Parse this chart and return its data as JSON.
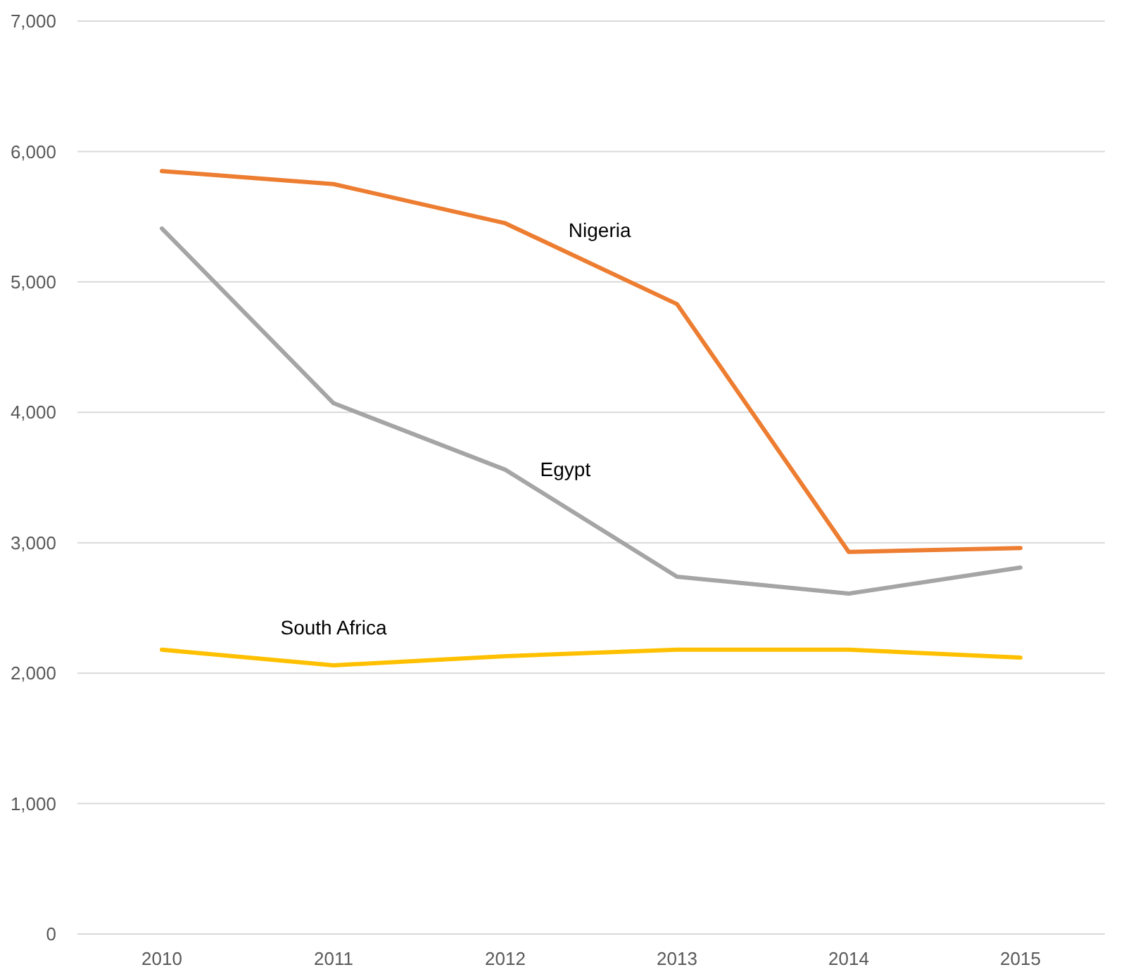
{
  "chart_data": {
    "type": "line",
    "categories": [
      "2010",
      "2011",
      "2012",
      "2013",
      "2014",
      "2015"
    ],
    "series": [
      {
        "name": "Nigeria",
        "color": "#ed7d31",
        "values": [
          5850,
          5750,
          5450,
          4830,
          2930,
          2960
        ]
      },
      {
        "name": "Egypt",
        "color": "#a5a5a5",
        "values": [
          5410,
          4070,
          3560,
          2740,
          2610,
          2810
        ]
      },
      {
        "name": "South Africa",
        "color": "#ffc000",
        "values": [
          2180,
          2060,
          2130,
          2180,
          2180,
          2120
        ]
      }
    ],
    "ylim": [
      0,
      7000
    ],
    "yticks": [
      {
        "value": 0,
        "label": "0"
      },
      {
        "value": 1000,
        "label": "1,000"
      },
      {
        "value": 2000,
        "label": "2,000"
      },
      {
        "value": 3000,
        "label": "3,000"
      },
      {
        "value": 4000,
        "label": "4,000"
      },
      {
        "value": 5000,
        "label": "5,000"
      },
      {
        "value": 6000,
        "label": "6,000"
      },
      {
        "value": 7000,
        "label": "7,000"
      }
    ],
    "grid": "y",
    "legend": false,
    "marker": "none",
    "line_style": "solid"
  }
}
